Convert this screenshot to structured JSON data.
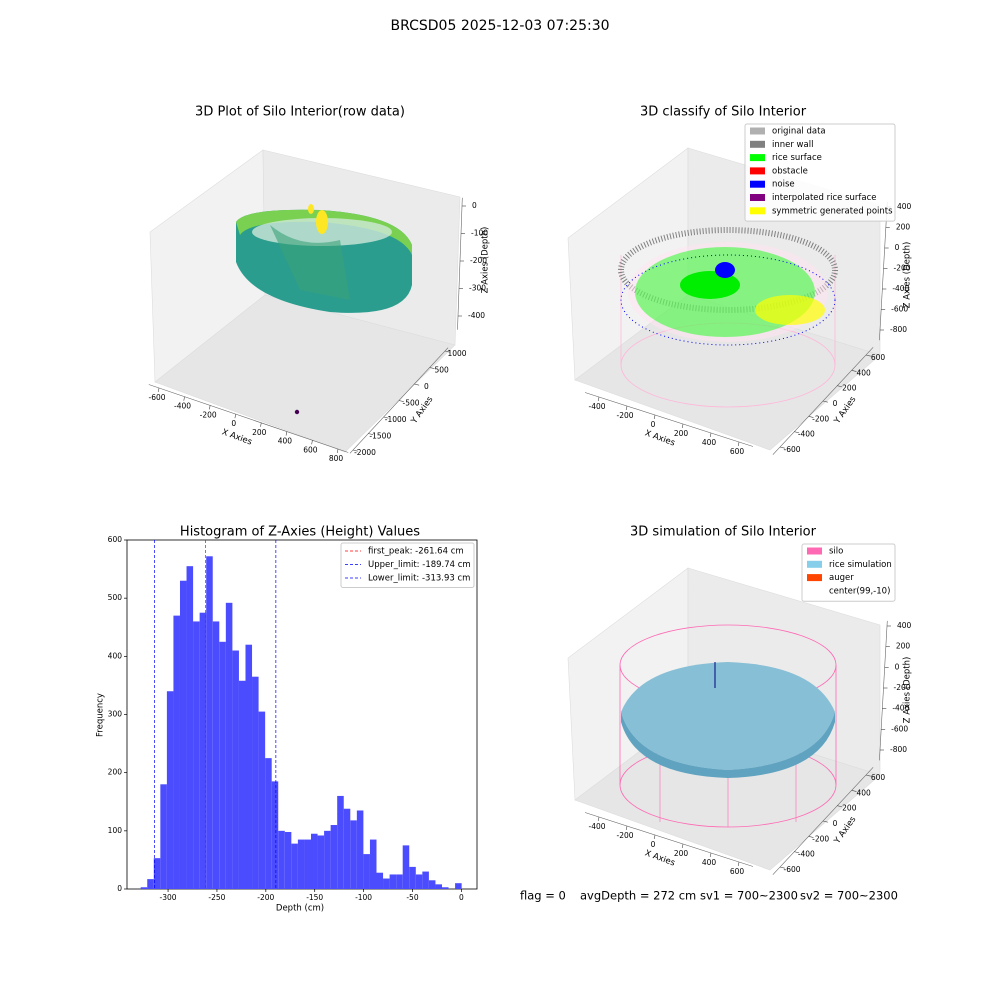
{
  "title": "BRCSD05 2025-12-03 07:25:30",
  "chart_data": [
    {
      "type": "scatter3d",
      "title": "3D Plot of Silo Interior(row data)",
      "xlabel": "X Axies",
      "ylabel": "Y Axies",
      "zlabel": "Z Axies (Depth)",
      "xlim": [
        -680,
        880
      ],
      "xticks": [
        -600,
        -400,
        -200,
        0,
        200,
        400,
        600,
        800
      ],
      "ylim": [
        -2100,
        1100
      ],
      "yticks": [
        -2000,
        -1500,
        -1000,
        -500,
        0,
        500,
        1000
      ],
      "zlim": [
        -450,
        30
      ],
      "zticks": [
        -400,
        -300,
        -200,
        -100,
        0
      ]
    },
    {
      "type": "scatter3d",
      "title": "3D classify of Silo Interior",
      "xlabel": "X Axies",
      "ylabel": "Y Axies",
      "zlabel": "Z Axies (Depth)",
      "xlim": [
        -500,
        700
      ],
      "xticks": [
        -400,
        -200,
        0,
        200,
        400,
        600
      ],
      "ylim": [
        -700,
        700
      ],
      "yticks": [
        -600,
        -400,
        -200,
        0,
        200,
        400,
        600
      ],
      "zlim": [
        -900,
        450
      ],
      "zticks": [
        400,
        200,
        0,
        -200,
        -400,
        -600,
        -800
      ],
      "legend": [
        {
          "name": "original data",
          "color": "#b0b0b0"
        },
        {
          "name": "inner wall",
          "color": "#808080"
        },
        {
          "name": "rice surface",
          "color": "#00ff00"
        },
        {
          "name": "obstacle",
          "color": "#ff0000"
        },
        {
          "name": "noise",
          "color": "#0000ff"
        },
        {
          "name": "interpolated rice surface",
          "color": "#800080"
        },
        {
          "name": "symmetric generated points",
          "color": "#ffff00"
        }
      ]
    },
    {
      "type": "histogram",
      "title": "Histogram of Z-Axies (Height) Values",
      "xlabel": "Depth (cm)",
      "ylabel": "Frequency",
      "color": "#4c4cff",
      "bins": [
        -328,
        -321.3,
        -314.6,
        -307.9,
        -301.2,
        -294.5,
        -287.8,
        -281.1,
        -274.4,
        -267.7,
        -261,
        -254.3,
        -247.6,
        -240.9,
        -234.2,
        -227.5,
        -220.8,
        -214.1,
        -207.4,
        -200.7,
        -194,
        -187.3,
        -180.6,
        -173.9,
        -167.2,
        -160.5,
        -153.8,
        -147.1,
        -140.4,
        -133.7,
        -127,
        -120.3,
        -113.6,
        -106.9,
        -100.2,
        -93.5,
        -86.8,
        -80.1,
        -73.4,
        -66.7,
        -60,
        -53.3,
        -46.6,
        -39.9,
        -33.2,
        -26.5,
        -19.8,
        -13.1,
        -6.4,
        0.3
      ],
      "values": [
        3,
        17,
        53,
        180,
        340,
        470,
        530,
        555,
        460,
        475,
        572,
        460,
        425,
        492,
        410,
        358,
        420,
        365,
        305,
        225,
        185,
        100,
        98,
        78,
        85,
        85,
        95,
        92,
        100,
        110,
        160,
        138,
        118,
        135,
        60,
        85,
        28,
        18,
        25,
        25,
        75,
        38,
        25,
        30,
        15,
        8,
        3,
        0,
        10
      ],
      "xlim": [
        -342,
        16
      ],
      "xticks": [
        -300,
        -250,
        -200,
        -150,
        -100,
        -50,
        0
      ],
      "ylim": [
        0,
        600
      ],
      "yticks": [
        0,
        100,
        200,
        300,
        400,
        500,
        600
      ],
      "lines": [
        {
          "name": "first_peak: -261.64 cm",
          "value": -261.64,
          "color": "#ff0000"
        },
        {
          "name": "Upper_limit: -189.74 cm",
          "value": -189.74,
          "color": "#0000ff"
        },
        {
          "name": "Lower_limit: -313.93 cm",
          "value": -313.93,
          "color": "#0000ff"
        }
      ]
    },
    {
      "type": "surface3d",
      "title": "3D simulation of Silo Interior",
      "xlabel": "X Axies",
      "ylabel": "Y Axies",
      "zlabel": "Z Axies (Depth)",
      "xlim": [
        -500,
        700
      ],
      "xticks": [
        -400,
        -200,
        0,
        200,
        400,
        600
      ],
      "ylim": [
        -700,
        700
      ],
      "yticks": [
        -600,
        -400,
        -200,
        0,
        200,
        400,
        600
      ],
      "zlim": [
        -900,
        450
      ],
      "zticks": [
        400,
        200,
        0,
        -200,
        -400,
        -600,
        -800
      ],
      "legend": [
        {
          "name": "silo",
          "color": "#ff69b4"
        },
        {
          "name": "rice simulation",
          "color": "#87ceeb"
        },
        {
          "name": "auger",
          "color": "#ff4500"
        },
        {
          "name": "center(99,-10)",
          "color": "#ffffff"
        }
      ]
    }
  ],
  "footer": [
    "flag = 0",
    "avgDepth = 272 cm",
    "sv1 = 700~2300",
    "sv2 = 700~2300"
  ]
}
